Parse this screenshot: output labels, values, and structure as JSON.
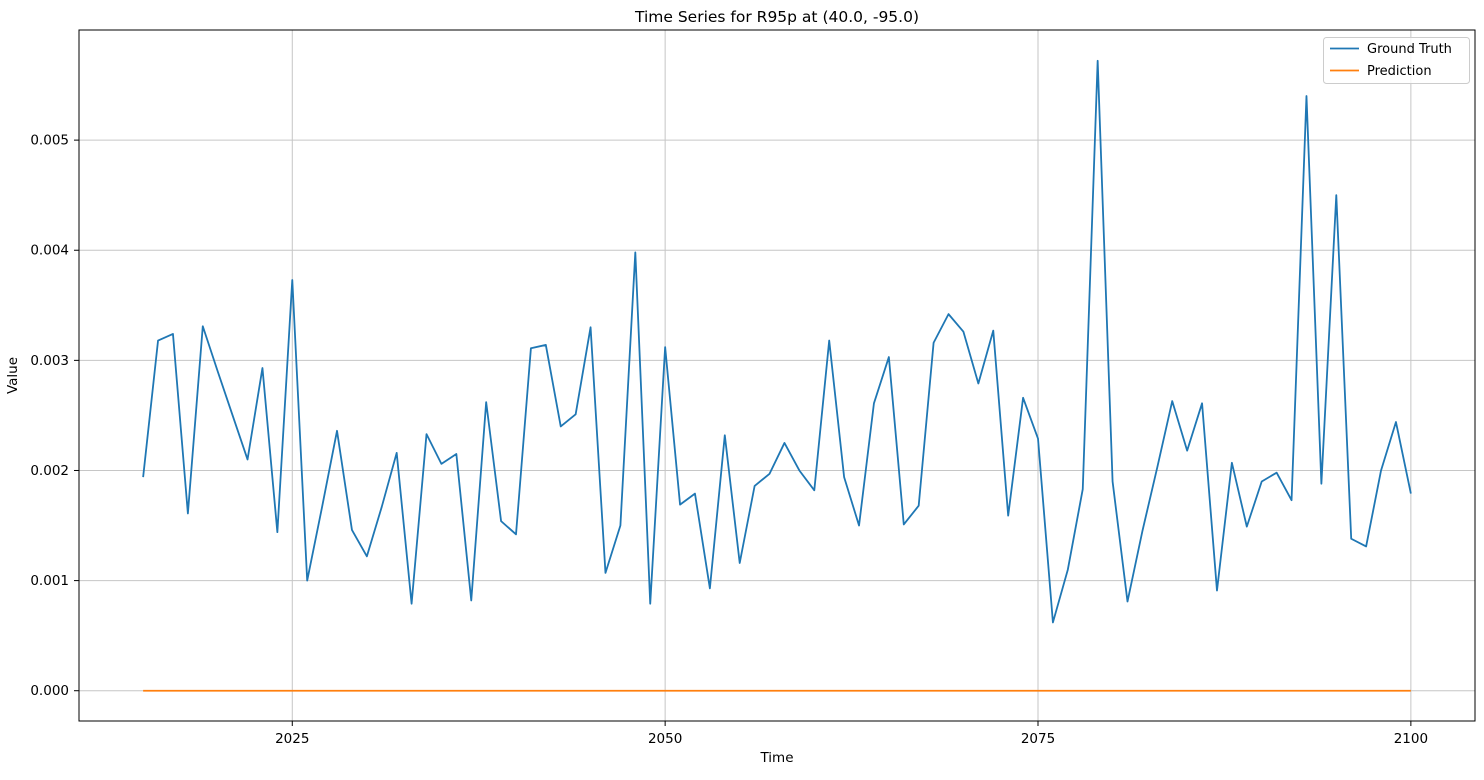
{
  "chart_data": {
    "type": "line",
    "title": "Time Series for R95p at (40.0, -95.0)",
    "xlabel": "Time",
    "ylabel": "Value",
    "grid": true,
    "legend_position": "upper right",
    "x_ticks": [
      2025,
      2050,
      2075,
      2100
    ],
    "x_tick_labels": [
      "2025",
      "2050",
      "2075",
      "2100"
    ],
    "y_ticks": [
      0.0,
      0.001,
      0.002,
      0.003,
      0.004,
      0.005
    ],
    "y_tick_labels": [
      "0.000",
      "0.001",
      "0.002",
      "0.003",
      "0.004",
      "0.005"
    ],
    "xlim": [
      2010.7,
      2104.3
    ],
    "ylim": [
      -0.000275,
      0.006
    ],
    "x": [
      2015,
      2016,
      2017,
      2018,
      2019,
      2020,
      2021,
      2022,
      2023,
      2024,
      2025,
      2026,
      2027,
      2028,
      2029,
      2030,
      2031,
      2032,
      2033,
      2034,
      2035,
      2036,
      2037,
      2038,
      2039,
      2040,
      2041,
      2042,
      2043,
      2044,
      2045,
      2046,
      2047,
      2048,
      2049,
      2050,
      2051,
      2052,
      2053,
      2054,
      2055,
      2056,
      2057,
      2058,
      2059,
      2060,
      2061,
      2062,
      2063,
      2064,
      2065,
      2066,
      2067,
      2068,
      2069,
      2070,
      2071,
      2072,
      2073,
      2074,
      2075,
      2076,
      2077,
      2078,
      2079,
      2080,
      2081,
      2082,
      2083,
      2084,
      2085,
      2086,
      2087,
      2088,
      2089,
      2090,
      2091,
      2092,
      2093,
      2094,
      2095,
      2096,
      2097,
      2098,
      2099,
      2100
    ],
    "series": [
      {
        "name": "Ground Truth",
        "color": "#1f77b4",
        "values": [
          0.00194,
          0.00318,
          0.00324,
          0.00161,
          0.00331,
          0.0029,
          0.0025,
          0.0021,
          0.00293,
          0.00144,
          0.00373,
          0.001,
          0.00167,
          0.00236,
          0.00146,
          0.00122,
          0.00167,
          0.00216,
          0.00079,
          0.00233,
          0.00206,
          0.00215,
          0.00082,
          0.00262,
          0.00154,
          0.00142,
          0.00311,
          0.00314,
          0.0024,
          0.00251,
          0.0033,
          0.00107,
          0.0015,
          0.00398,
          0.00079,
          0.00312,
          0.00169,
          0.00179,
          0.00093,
          0.00232,
          0.00116,
          0.00186,
          0.00197,
          0.00225,
          0.002,
          0.00182,
          0.00318,
          0.00194,
          0.0015,
          0.00261,
          0.00303,
          0.00151,
          0.00168,
          0.00316,
          0.00342,
          0.00326,
          0.00279,
          0.00327,
          0.00159,
          0.00266,
          0.00229,
          0.00062,
          0.0011,
          0.00183,
          0.00572,
          0.0019,
          0.00081,
          0.00145,
          0.00203,
          0.00263,
          0.00218,
          0.00261,
          0.00091,
          0.00207,
          0.00149,
          0.0019,
          0.00198,
          0.00173,
          0.0054,
          0.00188,
          0.0045,
          0.00138,
          0.00131,
          0.002,
          0.00244,
          0.00179
        ]
      },
      {
        "name": "Prediction",
        "color": "#ff7f0e",
        "values": [
          0,
          0,
          0,
          0,
          0,
          0,
          0,
          0,
          0,
          0,
          0,
          0,
          0,
          0,
          0,
          0,
          0,
          0,
          0,
          0,
          0,
          0,
          0,
          0,
          0,
          0,
          0,
          0,
          0,
          0,
          0,
          0,
          0,
          0,
          0,
          0,
          0,
          0,
          0,
          0,
          0,
          0,
          0,
          0,
          0,
          0,
          0,
          0,
          0,
          0,
          0,
          0,
          0,
          0,
          0,
          0,
          0,
          0,
          0,
          0,
          0,
          0,
          0,
          0,
          0,
          0,
          0,
          0,
          0,
          0,
          0,
          0,
          0,
          0,
          0,
          0,
          0,
          0,
          0,
          0,
          0,
          0,
          0,
          0,
          0,
          0
        ]
      }
    ],
    "grid_color": "#c6c6c6",
    "spine_color": "#000000"
  }
}
